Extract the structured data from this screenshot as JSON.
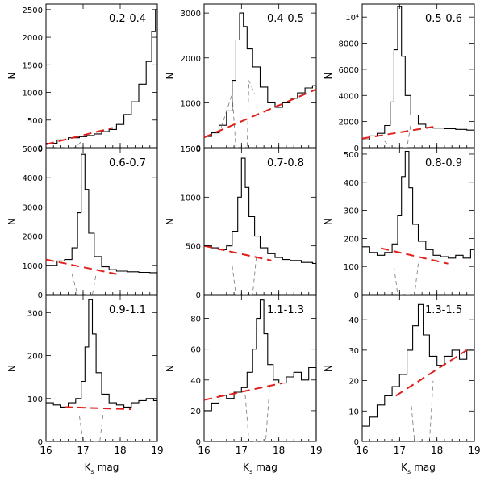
{
  "figure": {
    "xlabel": "K",
    "xlabel_sub": "s",
    "xlabel_unit": "mag"
  },
  "colors": {
    "background_fit": "#e0201b",
    "histogram": "#000000",
    "subtracted": "#777777"
  },
  "chart_data": [
    {
      "type": "histogram",
      "title": "0.2-0.4",
      "xlim": [
        16,
        19
      ],
      "xticks": [
        16,
        17,
        18,
        19
      ],
      "ylabel": "N",
      "ylim": [
        0,
        2600
      ],
      "yticks": [
        0,
        500,
        1000,
        1500,
        2000,
        2500
      ],
      "ytick_labels": [
        "0",
        "500",
        "1000",
        "1500",
        "2000",
        "2500"
      ],
      "counts": [
        [
          16.0,
          80
        ],
        [
          16.3,
          140
        ],
        [
          16.6,
          180
        ],
        [
          16.9,
          200
        ],
        [
          17.1,
          220
        ],
        [
          17.3,
          250
        ],
        [
          17.5,
          290
        ],
        [
          17.7,
          330
        ],
        [
          17.9,
          420
        ],
        [
          18.1,
          600
        ],
        [
          18.3,
          830
        ],
        [
          18.5,
          1150
        ],
        [
          18.7,
          1560
        ],
        [
          18.85,
          2100
        ],
        [
          18.95,
          2500
        ],
        [
          19.0,
          2520
        ]
      ],
      "background": [
        [
          16.0,
          60
        ],
        [
          17.8,
          360
        ]
      ],
      "subtracted": [
        [
          16.3,
          0
        ],
        [
          16.6,
          0
        ],
        [
          16.8,
          10
        ],
        [
          17.0,
          140
        ]
      ]
    },
    {
      "type": "histogram",
      "title": "0.4-0.5",
      "xlim": [
        16,
        19
      ],
      "xticks": [
        16,
        17,
        18,
        19
      ],
      "ylabel": "N",
      "ylim": [
        0,
        3200
      ],
      "yticks": [
        0,
        1000,
        2000,
        3000
      ],
      "ytick_labels": [
        "0",
        "1000",
        "2000",
        "3000"
      ],
      "counts": [
        [
          16.0,
          250
        ],
        [
          16.2,
          330
        ],
        [
          16.4,
          500
        ],
        [
          16.6,
          820
        ],
        [
          16.75,
          1500
        ],
        [
          16.85,
          2400
        ],
        [
          16.95,
          3000
        ],
        [
          17.05,
          2700
        ],
        [
          17.15,
          2200
        ],
        [
          17.3,
          1800
        ],
        [
          17.5,
          1350
        ],
        [
          17.7,
          1000
        ],
        [
          17.9,
          900
        ],
        [
          18.1,
          1000
        ],
        [
          18.3,
          1100
        ],
        [
          18.5,
          1220
        ],
        [
          18.7,
          1330
        ],
        [
          18.9,
          1380
        ],
        [
          19.0,
          1300
        ]
      ],
      "background": [
        [
          16.0,
          230
        ],
        [
          19.0,
          1300
        ]
      ],
      "subtracted": [
        [
          16.4,
          300
        ],
        [
          16.75,
          1200
        ],
        [
          16.85,
          0
        ],
        [
          17.15,
          0
        ],
        [
          17.2,
          1500
        ],
        [
          17.35,
          1200
        ]
      ]
    },
    {
      "type": "histogram",
      "title": "0.5-0.6",
      "xlim": [
        16,
        19
      ],
      "xticks": [
        16,
        17,
        18,
        19
      ],
      "ylabel": "N",
      "ylim": [
        0,
        11000
      ],
      "yticks": [
        0,
        2000,
        4000,
        6000,
        8000,
        10000
      ],
      "ytick_labels": [
        "0",
        "2000",
        "4000",
        "6000",
        "8000",
        "10⁴"
      ],
      "counts": [
        [
          16.0,
          600
        ],
        [
          16.2,
          900
        ],
        [
          16.4,
          1100
        ],
        [
          16.6,
          1700
        ],
        [
          16.75,
          3500
        ],
        [
          16.85,
          7500
        ],
        [
          16.95,
          10800
        ],
        [
          17.05,
          7000
        ],
        [
          17.15,
          4000
        ],
        [
          17.3,
          2500
        ],
        [
          17.5,
          1800
        ],
        [
          17.7,
          1550
        ],
        [
          17.9,
          1500
        ],
        [
          18.2,
          1450
        ],
        [
          18.5,
          1400
        ],
        [
          18.8,
          1350
        ],
        [
          19.0,
          1300
        ]
      ],
      "background": [
        [
          16.0,
          700
        ],
        [
          17.9,
          1600
        ]
      ],
      "subtracted": [
        [
          16.6,
          500
        ],
        [
          16.75,
          0
        ],
        [
          17.2,
          0
        ],
        [
          17.3,
          1800
        ]
      ]
    },
    {
      "type": "histogram",
      "title": "0.6-0.7",
      "xlim": [
        16,
        19
      ],
      "xticks": [
        16,
        17,
        18,
        19
      ],
      "ylabel": "N",
      "ylim": [
        0,
        5000
      ],
      "yticks": [
        0,
        1000,
        2000,
        3000,
        4000,
        5000
      ],
      "ytick_labels": [
        "0",
        "1000",
        "2000",
        "3000",
        "4000",
        "5000"
      ],
      "counts": [
        [
          16.0,
          1000
        ],
        [
          16.3,
          1150
        ],
        [
          16.5,
          1200
        ],
        [
          16.7,
          1600
        ],
        [
          16.85,
          2800
        ],
        [
          16.95,
          4800
        ],
        [
          17.05,
          3600
        ],
        [
          17.15,
          2100
        ],
        [
          17.3,
          1300
        ],
        [
          17.5,
          950
        ],
        [
          17.7,
          850
        ],
        [
          17.9,
          800
        ],
        [
          18.2,
          780
        ],
        [
          18.5,
          760
        ],
        [
          18.8,
          750
        ],
        [
          19.0,
          700
        ]
      ],
      "background": [
        [
          16.0,
          1200
        ],
        [
          17.9,
          700
        ]
      ],
      "subtracted": [
        [
          16.7,
          700
        ],
        [
          16.85,
          0
        ],
        [
          17.25,
          0
        ],
        [
          17.35,
          700
        ]
      ]
    },
    {
      "type": "histogram",
      "title": "0.7-0.8",
      "xlim": [
        16,
        19
      ],
      "xticks": [
        16,
        17,
        18,
        19
      ],
      "ylabel": "N",
      "ylim": [
        0,
        1500
      ],
      "yticks": [
        0,
        500,
        1000,
        1500
      ],
      "ytick_labels": [
        "0",
        "500",
        "1000",
        "1500"
      ],
      "counts": [
        [
          16.0,
          500
        ],
        [
          16.2,
          480
        ],
        [
          16.4,
          460
        ],
        [
          16.6,
          500
        ],
        [
          16.75,
          650
        ],
        [
          16.9,
          1000
        ],
        [
          17.0,
          1400
        ],
        [
          17.1,
          1100
        ],
        [
          17.2,
          800
        ],
        [
          17.35,
          600
        ],
        [
          17.5,
          480
        ],
        [
          17.7,
          420
        ],
        [
          17.9,
          380
        ],
        [
          18.1,
          360
        ],
        [
          18.3,
          350
        ],
        [
          18.6,
          330
        ],
        [
          18.9,
          320
        ],
        [
          19.0,
          300
        ]
      ],
      "background": [
        [
          16.0,
          500
        ],
        [
          17.8,
          350
        ]
      ],
      "subtracted": [
        [
          16.75,
          300
        ],
        [
          16.85,
          0
        ],
        [
          17.3,
          0
        ],
        [
          17.4,
          400
        ]
      ]
    },
    {
      "type": "histogram",
      "title": "0.8-0.9",
      "xlim": [
        16,
        19
      ],
      "xticks": [
        16,
        17,
        18,
        19
      ],
      "ylabel": "N",
      "ylim": [
        0,
        520
      ],
      "yticks": [
        0,
        100,
        200,
        300,
        400,
        500
      ],
      "ytick_labels": [
        "0",
        "100",
        "200",
        "300",
        "400",
        "500"
      ],
      "counts": [
        [
          16.0,
          170
        ],
        [
          16.2,
          150
        ],
        [
          16.4,
          140
        ],
        [
          16.6,
          150
        ],
        [
          16.8,
          180
        ],
        [
          16.95,
          280
        ],
        [
          17.05,
          420
        ],
        [
          17.15,
          510
        ],
        [
          17.25,
          380
        ],
        [
          17.35,
          250
        ],
        [
          17.5,
          190
        ],
        [
          17.7,
          160
        ],
        [
          17.9,
          140
        ],
        [
          18.1,
          135
        ],
        [
          18.3,
          130
        ],
        [
          18.5,
          140
        ],
        [
          18.7,
          130
        ],
        [
          18.9,
          160
        ],
        [
          19.0,
          150
        ]
      ],
      "background": [
        [
          16.5,
          165
        ],
        [
          18.3,
          110
        ]
      ],
      "subtracted": [
        [
          16.85,
          100
        ],
        [
          16.95,
          0
        ],
        [
          17.4,
          0
        ],
        [
          17.5,
          110
        ]
      ]
    },
    {
      "type": "histogram",
      "title": "0.9-1.1",
      "xlim": [
        16,
        19
      ],
      "xticks": [
        16,
        17,
        18,
        19
      ],
      "ylabel": "N",
      "ylim": [
        0,
        340
      ],
      "yticks": [
        0,
        100,
        200,
        300
      ],
      "ytick_labels": [
        "0",
        "100",
        "200",
        "300"
      ],
      "counts": [
        [
          16.0,
          90
        ],
        [
          16.2,
          85
        ],
        [
          16.4,
          80
        ],
        [
          16.6,
          90
        ],
        [
          16.8,
          100
        ],
        [
          16.95,
          140
        ],
        [
          17.05,
          220
        ],
        [
          17.15,
          330
        ],
        [
          17.25,
          250
        ],
        [
          17.35,
          160
        ],
        [
          17.5,
          110
        ],
        [
          17.7,
          90
        ],
        [
          17.9,
          85
        ],
        [
          18.1,
          80
        ],
        [
          18.3,
          90
        ],
        [
          18.5,
          95
        ],
        [
          18.7,
          100
        ],
        [
          18.9,
          95
        ],
        [
          19.0,
          80
        ]
      ],
      "background": [
        [
          16.5,
          80
        ],
        [
          18.3,
          75
        ]
      ],
      "subtracted": [
        [
          16.9,
          60
        ],
        [
          17.0,
          0
        ],
        [
          17.45,
          0
        ],
        [
          17.55,
          70
        ]
      ]
    },
    {
      "type": "histogram",
      "title": "1.1-1.3",
      "xlim": [
        16,
        19
      ],
      "xticks": [
        16,
        17,
        18,
        19
      ],
      "ylabel": "N",
      "ylim": [
        0,
        95
      ],
      "yticks": [
        0,
        20,
        40,
        60,
        80
      ],
      "ytick_labels": [
        "0",
        "20",
        "40",
        "60",
        "80"
      ],
      "counts": [
        [
          16.0,
          20
        ],
        [
          16.2,
          25
        ],
        [
          16.4,
          30
        ],
        [
          16.6,
          28
        ],
        [
          16.8,
          32
        ],
        [
          17.0,
          35
        ],
        [
          17.15,
          45
        ],
        [
          17.3,
          60
        ],
        [
          17.4,
          80
        ],
        [
          17.5,
          92
        ],
        [
          17.6,
          70
        ],
        [
          17.7,
          50
        ],
        [
          17.85,
          40
        ],
        [
          18.0,
          38
        ],
        [
          18.2,
          42
        ],
        [
          18.4,
          45
        ],
        [
          18.6,
          40
        ],
        [
          18.8,
          48
        ],
        [
          19.0,
          38
        ]
      ],
      "background": [
        [
          16.0,
          27
        ],
        [
          18.1,
          38
        ]
      ],
      "subtracted": [
        [
          17.1,
          30
        ],
        [
          17.2,
          0
        ],
        [
          17.65,
          0
        ],
        [
          17.75,
          35
        ]
      ]
    },
    {
      "type": "histogram",
      "title": "1.3-1.5",
      "xlim": [
        16,
        19
      ],
      "xticks": [
        16,
        17,
        18,
        19
      ],
      "ylabel": "N",
      "ylim": [
        0,
        48
      ],
      "yticks": [
        0,
        10,
        20,
        30,
        40
      ],
      "ytick_labels": [
        "0",
        "10",
        "20",
        "30",
        "40"
      ],
      "counts": [
        [
          16.0,
          5
        ],
        [
          16.2,
          8
        ],
        [
          16.4,
          12
        ],
        [
          16.6,
          15
        ],
        [
          16.8,
          18
        ],
        [
          17.0,
          22
        ],
        [
          17.2,
          30
        ],
        [
          17.35,
          38
        ],
        [
          17.5,
          45
        ],
        [
          17.65,
          35
        ],
        [
          17.8,
          28
        ],
        [
          18.0,
          25
        ],
        [
          18.2,
          28
        ],
        [
          18.4,
          30
        ],
        [
          18.6,
          27
        ],
        [
          18.8,
          30
        ],
        [
          19.0,
          28
        ]
      ],
      "background": [
        [
          16.9,
          15
        ],
        [
          18.8,
          30
        ]
      ],
      "subtracted": [
        [
          17.3,
          14
        ],
        [
          17.4,
          0
        ],
        [
          17.8,
          0
        ],
        [
          17.9,
          20
        ]
      ]
    }
  ]
}
